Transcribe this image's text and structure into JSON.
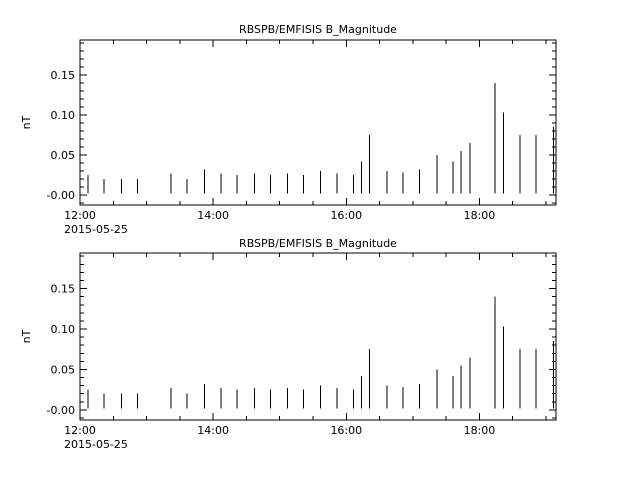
{
  "page": {
    "background": "#ffffff",
    "foreground": "#000000"
  },
  "chart_data": [
    {
      "type": "line",
      "subtype": "vertical-spikes",
      "title": "RBSPB/EMFISIS  B_Magnitude",
      "ylabel": "nT",
      "xlabel": "",
      "xlabel_date": "2015-05-25",
      "grid": false,
      "legend": "none",
      "xlim": [
        12.0,
        19.15
      ],
      "ylim": [
        -0.0125,
        0.194
      ],
      "x_minor_step": 0.5,
      "y_minor_step": 0.01,
      "baseline": 0.002,
      "line_color": "#000000",
      "xticks": [
        {
          "value": 12.0,
          "label": "12:00"
        },
        {
          "value": 14.0,
          "label": "14:00"
        },
        {
          "value": 16.0,
          "label": "16:00"
        },
        {
          "value": 18.0,
          "label": "18:00"
        }
      ],
      "yticks": [
        {
          "value": 0.0,
          "label": "-0.00"
        },
        {
          "value": 0.05,
          "label": "0.05"
        },
        {
          "value": 0.1,
          "label": "0.10"
        },
        {
          "value": 0.15,
          "label": "0.15"
        }
      ],
      "points": {
        "x": [
          12.12,
          12.36,
          12.62,
          12.86,
          13.37,
          13.61,
          13.87,
          14.12,
          14.36,
          14.62,
          14.86,
          15.12,
          15.36,
          15.61,
          15.86,
          16.11,
          16.23,
          16.35,
          16.61,
          16.85,
          17.1,
          17.36,
          17.6,
          17.72,
          17.86,
          18.23,
          18.36,
          18.61,
          18.85,
          19.11
        ],
        "y": [
          0.025,
          0.02,
          0.02,
          0.02,
          0.027,
          0.02,
          0.032,
          0.027,
          0.025,
          0.027,
          0.025,
          0.027,
          0.025,
          0.03,
          0.027,
          0.025,
          0.042,
          0.075,
          0.03,
          0.028,
          0.032,
          0.05,
          0.042,
          0.055,
          0.065,
          0.14,
          0.103,
          0.075,
          0.075,
          0.085
        ]
      }
    },
    {
      "type": "line",
      "subtype": "vertical-spikes",
      "title": "RBSPB/EMFISIS  B_Magnitude",
      "ylabel": "nT",
      "xlabel": "",
      "xlabel_date": "2015-05-25",
      "grid": false,
      "legend": "none",
      "xlim": [
        12.0,
        19.15
      ],
      "ylim": [
        -0.0125,
        0.194
      ],
      "x_minor_step": 0.5,
      "y_minor_step": 0.01,
      "baseline": 0.002,
      "line_color": "#000000",
      "xticks": [
        {
          "value": 12.0,
          "label": "12:00"
        },
        {
          "value": 14.0,
          "label": "14:00"
        },
        {
          "value": 16.0,
          "label": "16:00"
        },
        {
          "value": 18.0,
          "label": "18:00"
        }
      ],
      "yticks": [
        {
          "value": 0.0,
          "label": "-0.00"
        },
        {
          "value": 0.05,
          "label": "0.05"
        },
        {
          "value": 0.1,
          "label": "0.10"
        },
        {
          "value": 0.15,
          "label": "0.15"
        }
      ],
      "points": {
        "x": [
          12.12,
          12.36,
          12.62,
          12.86,
          13.37,
          13.61,
          13.87,
          14.12,
          14.36,
          14.62,
          14.86,
          15.12,
          15.36,
          15.61,
          15.86,
          16.11,
          16.23,
          16.35,
          16.61,
          16.85,
          17.1,
          17.36,
          17.6,
          17.72,
          17.86,
          18.23,
          18.36,
          18.61,
          18.85,
          19.11
        ],
        "y": [
          0.025,
          0.02,
          0.02,
          0.02,
          0.027,
          0.02,
          0.032,
          0.027,
          0.025,
          0.027,
          0.025,
          0.027,
          0.025,
          0.03,
          0.027,
          0.025,
          0.042,
          0.075,
          0.03,
          0.028,
          0.032,
          0.05,
          0.042,
          0.055,
          0.065,
          0.14,
          0.103,
          0.075,
          0.075,
          0.085
        ]
      }
    }
  ]
}
